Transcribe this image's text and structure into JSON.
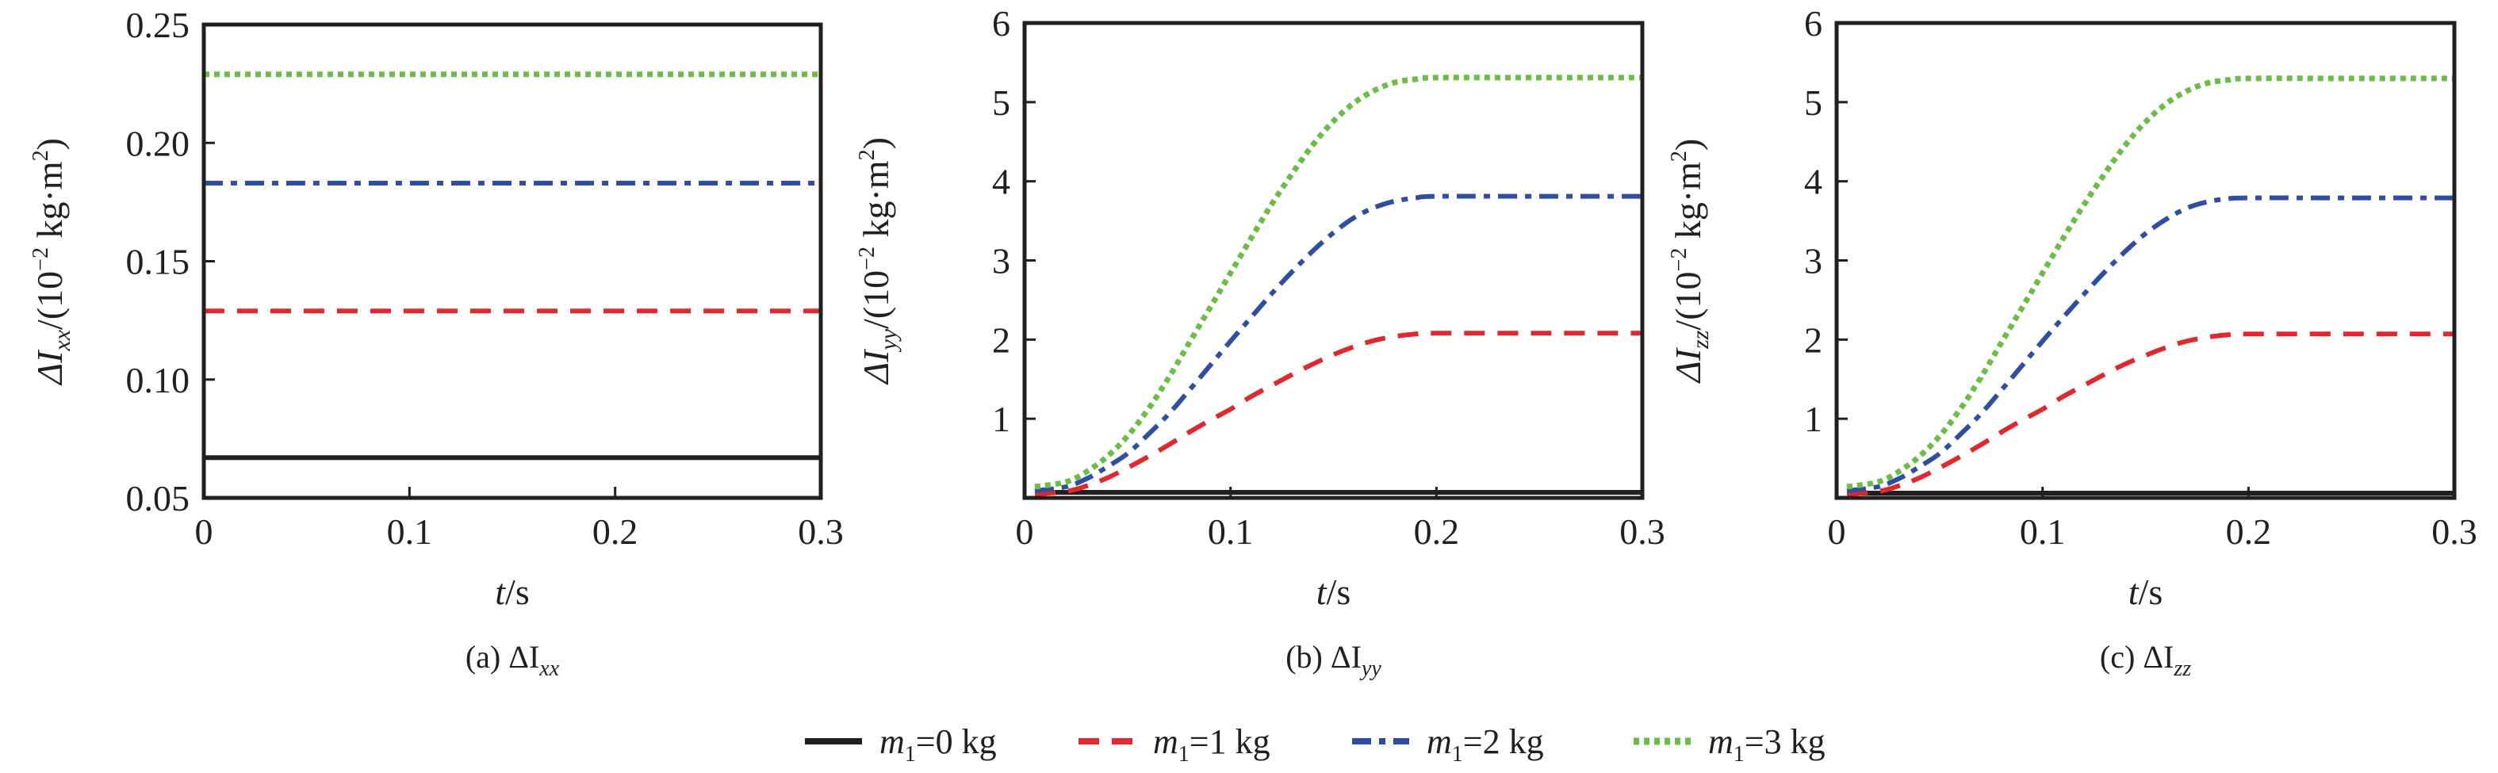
{
  "figure": {
    "legend": [
      {
        "var": "m",
        "sub": "1",
        "text": "=0 kg",
        "series_key": "m0"
      },
      {
        "var": "m",
        "sub": "1",
        "text": "=1 kg",
        "series_key": "m1"
      },
      {
        "var": "m",
        "sub": "1",
        "text": "=2 kg",
        "series_key": "m2"
      },
      {
        "var": "m",
        "sub": "1",
        "text": "=3 kg",
        "series_key": "m3"
      }
    ],
    "styles": {
      "m0": {
        "color": "#231f20",
        "dash": "solid"
      },
      "m1": {
        "color": "#e0282f",
        "dash": "dashed"
      },
      "m2": {
        "color": "#2e4fa1",
        "dash": "dashdot"
      },
      "m3": {
        "color": "#6cbd45",
        "dash": "dotted"
      }
    }
  },
  "chart_data": [
    {
      "type": "line",
      "panel": "a",
      "caption": {
        "prefix": "(a) ",
        "symbol": "ΔI",
        "sub": "xx"
      },
      "xlabel": {
        "var": "t",
        "unit": "/s"
      },
      "ylabel": {
        "symbol": "ΔI",
        "sub": "xx",
        "unit_pre": "/(10",
        "exp": "−2",
        "unit_post": " kg·m",
        "exp2": "2",
        "close": ")"
      },
      "xlim": [
        0,
        0.3
      ],
      "ylim": [
        0.05,
        0.25
      ],
      "xticks": [
        0,
        0.1,
        0.2,
        0.3
      ],
      "xtick_labels": [
        "0",
        "0.1",
        "0.2",
        "0.3"
      ],
      "yticks": [
        0.05,
        0.1,
        0.15,
        0.2,
        0.25
      ],
      "ytick_labels": [
        "0.05",
        "0.10",
        "0.15",
        "0.20",
        "0.25"
      ],
      "grid": false,
      "x": [
        0,
        0.3
      ],
      "series": [
        {
          "key": "m0",
          "name": "m1=0 kg",
          "values": [
            0.067,
            0.067
          ]
        },
        {
          "key": "m1",
          "name": "m1=1 kg",
          "values": [
            0.129,
            0.129
          ]
        },
        {
          "key": "m2",
          "name": "m1=2 kg",
          "values": [
            0.183,
            0.183
          ]
        },
        {
          "key": "m3",
          "name": "m1=3 kg",
          "values": [
            0.229,
            0.229
          ]
        }
      ]
    },
    {
      "type": "line",
      "panel": "b",
      "caption": {
        "prefix": "(b) ",
        "symbol": "ΔI",
        "sub": "yy"
      },
      "xlabel": {
        "var": "t",
        "unit": "/s"
      },
      "ylabel": {
        "symbol": "ΔI",
        "sub": "yy",
        "unit_pre": "/(10",
        "exp": "−2",
        "unit_post": " kg·m",
        "exp2": "2",
        "close": ")"
      },
      "xlim": [
        0,
        0.3
      ],
      "ylim": [
        0,
        6
      ],
      "xticks": [
        0,
        0.1,
        0.2,
        0.3
      ],
      "xtick_labels": [
        "0",
        "0.1",
        "0.2",
        "0.3"
      ],
      "yticks": [
        1,
        2,
        3,
        4,
        5,
        6
      ],
      "ytick_labels": [
        "1",
        "2",
        "3",
        "4",
        "5",
        "6"
      ],
      "grid": false,
      "x": [
        0.005,
        0.02,
        0.03,
        0.04,
        0.05,
        0.06,
        0.07,
        0.08,
        0.09,
        0.1,
        0.11,
        0.12,
        0.13,
        0.14,
        0.15,
        0.16,
        0.17,
        0.18,
        0.19,
        0.2,
        0.25,
        0.3
      ],
      "series": [
        {
          "key": "m0",
          "name": "m1=0 kg",
          "values": [
            0.07,
            0.07,
            0.07,
            0.07,
            0.07,
            0.07,
            0.07,
            0.07,
            0.07,
            0.07,
            0.07,
            0.07,
            0.07,
            0.07,
            0.07,
            0.07,
            0.07,
            0.07,
            0.07,
            0.07,
            0.07,
            0.07
          ]
        },
        {
          "key": "m1",
          "name": "m1=1 kg",
          "values": [
            0.05,
            0.08,
            0.15,
            0.25,
            0.38,
            0.52,
            0.67,
            0.83,
            0.98,
            1.12,
            1.28,
            1.42,
            1.56,
            1.69,
            1.81,
            1.91,
            1.99,
            2.04,
            2.07,
            2.08,
            2.08,
            2.08
          ]
        },
        {
          "key": "m2",
          "name": "m1=2 kg",
          "values": [
            0.09,
            0.14,
            0.24,
            0.39,
            0.56,
            0.8,
            1.06,
            1.36,
            1.67,
            1.98,
            2.28,
            2.58,
            2.86,
            3.12,
            3.35,
            3.54,
            3.67,
            3.75,
            3.79,
            3.81,
            3.81,
            3.81
          ]
        },
        {
          "key": "m3",
          "name": "m1=3 kg",
          "values": [
            0.14,
            0.2,
            0.33,
            0.52,
            0.78,
            1.12,
            1.52,
            1.96,
            2.4,
            2.84,
            3.28,
            3.71,
            4.1,
            4.46,
            4.76,
            4.99,
            5.15,
            5.25,
            5.29,
            5.31,
            5.31,
            5.31
          ]
        }
      ]
    },
    {
      "type": "line",
      "panel": "c",
      "caption": {
        "prefix": "(c) ",
        "symbol": "ΔI",
        "sub": "zz"
      },
      "xlabel": {
        "var": "t",
        "unit": "/s"
      },
      "ylabel": {
        "symbol": "ΔI",
        "sub": "zz",
        "unit_pre": "/(10",
        "exp": "−2",
        "unit_post": " kg·m",
        "exp2": "2",
        "close": ")"
      },
      "xlim": [
        0,
        0.3
      ],
      "ylim": [
        0,
        6
      ],
      "xticks": [
        0,
        0.1,
        0.2,
        0.3
      ],
      "xtick_labels": [
        "0",
        "0.1",
        "0.2",
        "0.3"
      ],
      "yticks": [
        1,
        2,
        3,
        4,
        5,
        6
      ],
      "ytick_labels": [
        "1",
        "2",
        "3",
        "4",
        "5",
        "6"
      ],
      "grid": false,
      "x": [
        0.005,
        0.02,
        0.03,
        0.04,
        0.05,
        0.06,
        0.07,
        0.08,
        0.09,
        0.1,
        0.11,
        0.12,
        0.13,
        0.14,
        0.15,
        0.16,
        0.17,
        0.18,
        0.19,
        0.2,
        0.25,
        0.3
      ],
      "series": [
        {
          "key": "m0",
          "name": "m1=0 kg",
          "values": [
            0.06,
            0.06,
            0.06,
            0.06,
            0.06,
            0.06,
            0.06,
            0.06,
            0.06,
            0.06,
            0.06,
            0.06,
            0.06,
            0.06,
            0.06,
            0.06,
            0.06,
            0.06,
            0.06,
            0.06,
            0.06,
            0.06
          ]
        },
        {
          "key": "m1",
          "name": "m1=1 kg",
          "values": [
            0.05,
            0.08,
            0.15,
            0.25,
            0.38,
            0.52,
            0.67,
            0.83,
            0.98,
            1.12,
            1.28,
            1.42,
            1.56,
            1.69,
            1.8,
            1.9,
            1.98,
            2.03,
            2.06,
            2.07,
            2.07,
            2.07
          ]
        },
        {
          "key": "m2",
          "name": "m1=2 kg",
          "values": [
            0.09,
            0.14,
            0.24,
            0.39,
            0.56,
            0.8,
            1.06,
            1.36,
            1.67,
            1.98,
            2.28,
            2.57,
            2.85,
            3.11,
            3.34,
            3.52,
            3.66,
            3.74,
            3.78,
            3.79,
            3.79,
            3.79
          ]
        },
        {
          "key": "m3",
          "name": "m1=3 kg",
          "values": [
            0.14,
            0.2,
            0.33,
            0.52,
            0.78,
            1.12,
            1.52,
            1.96,
            2.4,
            2.84,
            3.28,
            3.7,
            4.09,
            4.45,
            4.75,
            4.98,
            5.14,
            5.24,
            5.28,
            5.3,
            5.3,
            5.3
          ]
        }
      ]
    }
  ]
}
